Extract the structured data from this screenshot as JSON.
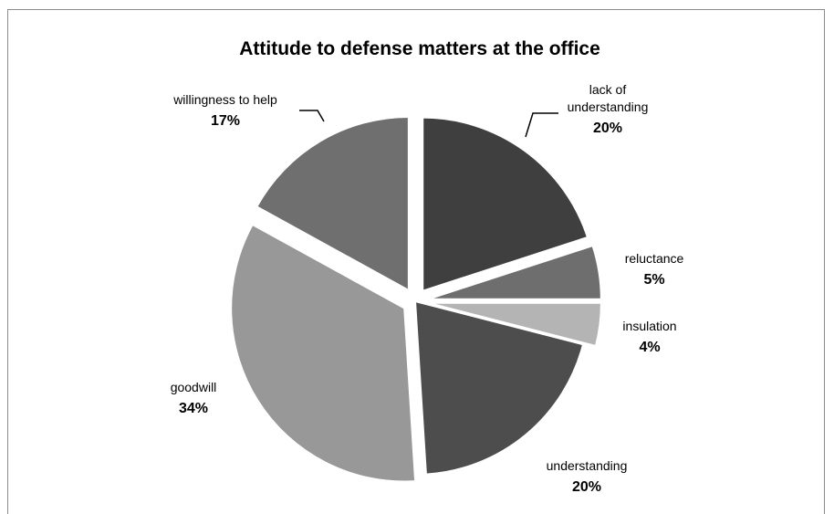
{
  "chart_data": {
    "type": "pie",
    "title": "Attitude to defense matters at the office",
    "slices": [
      {
        "label": "lack of understanding",
        "label_lines": [
          "lack of",
          "understanding"
        ],
        "value": 20,
        "pct_label": "20%",
        "color": "#3f3f3f",
        "exploded": true
      },
      {
        "label": "reluctance",
        "label_lines": [
          "reluctance"
        ],
        "value": 5,
        "pct_label": "5%",
        "color": "#6e6e6e",
        "exploded": true
      },
      {
        "label": "insulation",
        "label_lines": [
          "insulation"
        ],
        "value": 4,
        "pct_label": "4%",
        "color": "#b4b4b4",
        "exploded": true
      },
      {
        "label": "understanding",
        "label_lines": [
          "understanding"
        ],
        "value": 20,
        "pct_label": "20%",
        "color": "#4d4d4d",
        "exploded": false
      },
      {
        "label": "goodwill",
        "label_lines": [
          "goodwill"
        ],
        "value": 34,
        "pct_label": "34%",
        "color": "#989898",
        "exploded": true
      },
      {
        "label": "willingness to help",
        "label_lines": [
          "willingness to help"
        ],
        "value": 17,
        "pct_label": "17%",
        "color": "#6f6f6f",
        "exploded": true
      }
    ],
    "start_angle_deg": 0,
    "direction": "clockwise",
    "legend": "none"
  }
}
